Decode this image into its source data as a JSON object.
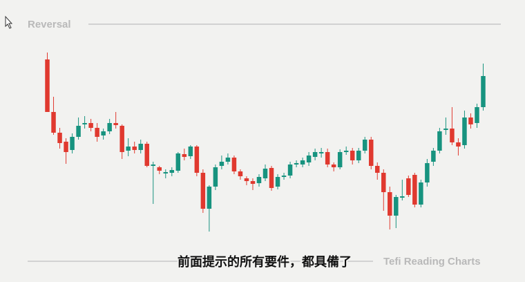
{
  "chart_data": {
    "type": "candlestick",
    "title": "Reversal",
    "subtitle": "前面提示的所有要件，都具備了",
    "source": "Tefi Reading Charts",
    "open": [
      314,
      238,
      208,
      195,
      183,
      202,
      220,
      222,
      215,
      204,
      210,
      222,
      218,
      182,
      188,
      183,
      192,
      160,
      158,
      149,
      150,
      153,
      177,
      174,
      188,
      150,
      98,
      130,
      160,
      166,
      172,
      152,
      142,
      138,
      135,
      142,
      157,
      130,
      144,
      146,
      162,
      162,
      165,
      173,
      178,
      180,
      162,
      158,
      180,
      182,
      168,
      182,
      198,
      160,
      150,
      122,
      88,
      114,
      142,
      147,
      104,
      136,
      166,
      182,
      212,
      214,
      194,
      190,
      230,
      222,
      245
    ],
    "high": [
      324,
      260,
      215,
      200,
      207,
      230,
      232,
      228,
      222,
      214,
      228,
      238,
      220,
      200,
      195,
      198,
      195,
      166,
      160,
      155,
      158,
      180,
      185,
      190,
      190,
      155,
      132,
      162,
      175,
      178,
      175,
      155,
      145,
      142,
      148,
      162,
      160,
      148,
      150,
      166,
      168,
      172,
      180,
      185,
      186,
      185,
      165,
      184,
      188,
      186,
      186,
      202,
      202,
      165,
      155,
      130,
      118,
      140,
      146,
      150,
      140,
      170,
      186,
      215,
      230,
      245,
      200,
      240,
      236,
      250,
      308
    ],
    "low": [
      238,
      205,
      185,
      163,
      178,
      198,
      214,
      210,
      195,
      198,
      206,
      214,
      170,
      174,
      178,
      178,
      158,
      105,
      148,
      142,
      145,
      150,
      168,
      170,
      145,
      92,
      65,
      125,
      155,
      162,
      148,
      140,
      132,
      125,
      130,
      138,
      124,
      126,
      140,
      142,
      158,
      158,
      160,
      168,
      172,
      158,
      152,
      155,
      176,
      162,
      164,
      178,
      155,
      140,
      95,
      68,
      70,
      110,
      115,
      100,
      100,
      130,
      160,
      178,
      205,
      190,
      175,
      185,
      214,
      215,
      240
    ],
    "close": [
      238,
      208,
      193,
      180,
      202,
      218,
      222,
      215,
      202,
      210,
      222,
      219,
      180,
      188,
      183,
      192,
      160,
      162,
      153,
      151,
      154,
      178,
      173,
      188,
      150,
      98,
      130,
      158,
      166,
      172,
      152,
      145,
      138,
      134,
      144,
      156,
      128,
      144,
      146,
      162,
      164,
      168,
      175,
      180,
      180,
      162,
      158,
      180,
      182,
      168,
      182,
      198,
      160,
      150,
      122,
      88,
      115,
      116,
      118,
      104,
      136,
      164,
      182,
      210,
      214,
      194,
      188,
      230,
      220,
      245,
      290
    ],
    "colors": {
      "up": "#17937f",
      "down": "#e0392f"
    },
    "ylim": [
      50,
      340
    ]
  }
}
